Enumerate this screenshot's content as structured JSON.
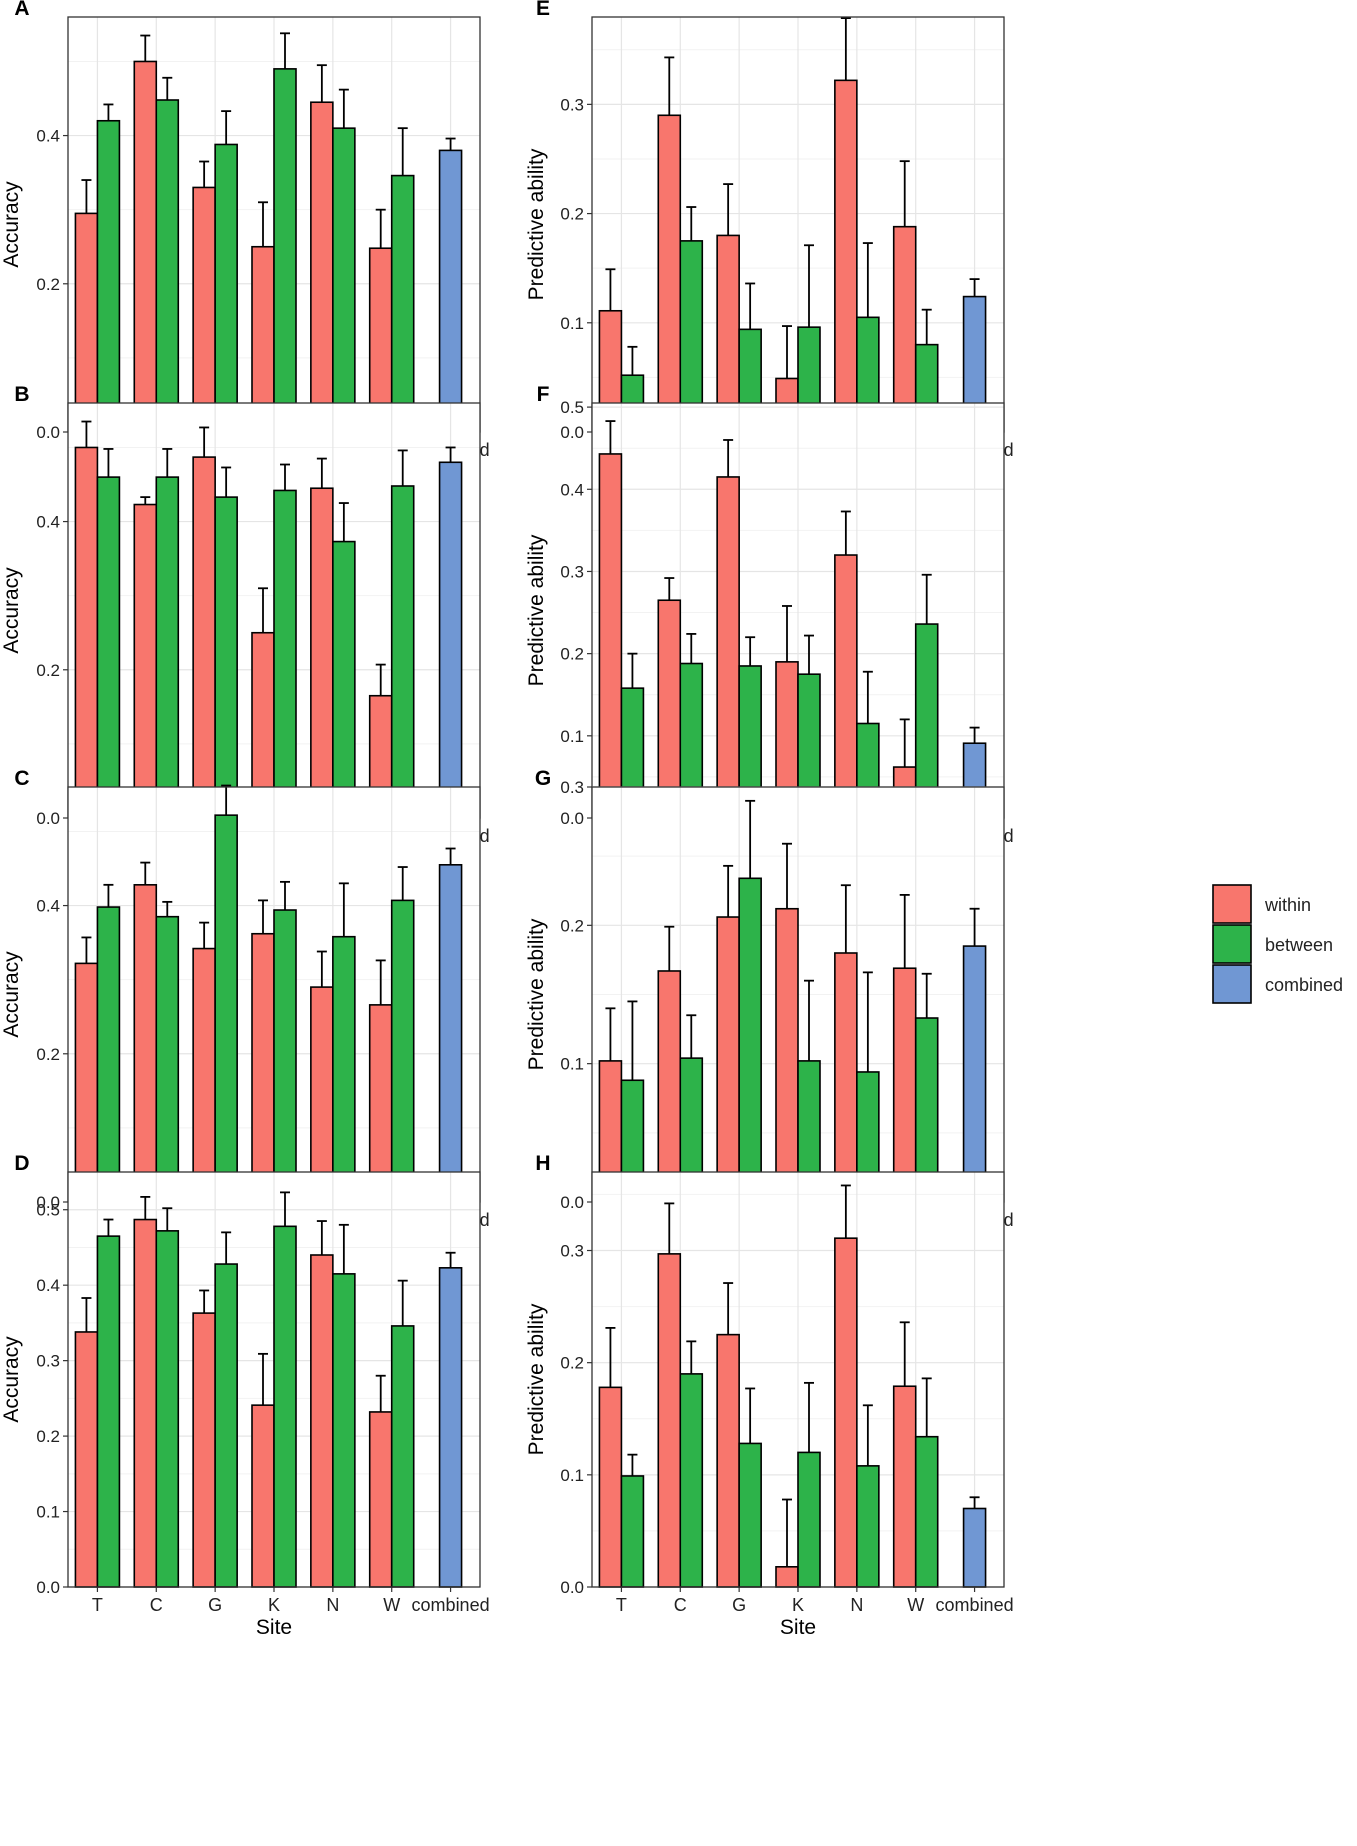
{
  "legend": {
    "position": "right",
    "items": [
      {
        "label": "within",
        "color": "#F8766D"
      },
      {
        "label": "between",
        "color": "#2DB34A"
      },
      {
        "label": "combined",
        "color": "#7097D3"
      }
    ]
  },
  "chart_data": [
    {
      "panel": "A",
      "type": "bar",
      "categories": [
        "T",
        "C",
        "G",
        "K",
        "N",
        "W",
        "combined"
      ],
      "series": [
        {
          "name": "within",
          "values": [
            0.295,
            0.5,
            0.33,
            0.25,
            0.445,
            0.248,
            null
          ],
          "errors": [
            0.045,
            0.035,
            0.035,
            0.06,
            0.05,
            0.052,
            null
          ]
        },
        {
          "name": "between",
          "values": [
            0.42,
            0.448,
            0.388,
            0.49,
            0.41,
            0.346,
            null
          ],
          "errors": [
            0.022,
            0.03,
            0.045,
            0.048,
            0.052,
            0.064,
            null
          ]
        },
        {
          "name": "combined",
          "values": [
            null,
            null,
            null,
            null,
            null,
            null,
            0.38
          ],
          "errors": [
            null,
            null,
            null,
            null,
            null,
            null,
            0.016
          ]
        }
      ],
      "ylabel": "Accuracy",
      "xlabel": "",
      "ylim": [
        0,
        0.56
      ],
      "yticks": [
        0.0,
        0.2,
        0.4
      ],
      "yticklabels": [
        "0.0",
        "0.2",
        "0.4"
      ]
    },
    {
      "panel": "B",
      "type": "bar",
      "categories": [
        "T",
        "C",
        "G",
        "K",
        "N",
        "W",
        "combined"
      ],
      "series": [
        {
          "name": "within",
          "values": [
            0.5,
            0.423,
            0.487,
            0.25,
            0.445,
            0.165,
            null
          ],
          "errors": [
            0.035,
            0.01,
            0.04,
            0.06,
            0.04,
            0.042,
            null
          ]
        },
        {
          "name": "between",
          "values": [
            0.46,
            0.46,
            0.433,
            0.442,
            0.373,
            0.448,
            null
          ],
          "errors": [
            0.038,
            0.038,
            0.04,
            0.035,
            0.052,
            0.048,
            null
          ]
        },
        {
          "name": "combined",
          "values": [
            null,
            null,
            null,
            null,
            null,
            null,
            0.48
          ],
          "errors": [
            null,
            null,
            null,
            null,
            null,
            null,
            0.02
          ]
        }
      ],
      "ylabel": "Accuracy",
      "xlabel": "",
      "ylim": [
        0,
        0.56
      ],
      "yticks": [
        0.0,
        0.2,
        0.4
      ],
      "yticklabels": [
        "0.0",
        "0.2",
        "0.4"
      ]
    },
    {
      "panel": "C",
      "type": "bar",
      "categories": [
        "T",
        "C",
        "G",
        "K",
        "N",
        "W",
        "combined"
      ],
      "series": [
        {
          "name": "within",
          "values": [
            0.322,
            0.428,
            0.342,
            0.362,
            0.29,
            0.266,
            null
          ],
          "errors": [
            0.035,
            0.03,
            0.035,
            0.045,
            0.048,
            0.06,
            null
          ]
        },
        {
          "name": "between",
          "values": [
            0.398,
            0.385,
            0.522,
            0.394,
            0.358,
            0.407,
            null
          ],
          "errors": [
            0.03,
            0.02,
            0.04,
            0.038,
            0.072,
            0.045,
            null
          ]
        },
        {
          "name": "combined",
          "values": [
            null,
            null,
            null,
            null,
            null,
            null,
            0.455
          ],
          "errors": [
            null,
            null,
            null,
            null,
            null,
            null,
            0.022
          ]
        }
      ],
      "ylabel": "Accuracy",
      "xlabel": "",
      "ylim": [
        0,
        0.56
      ],
      "yticks": [
        0.0,
        0.2,
        0.4
      ],
      "yticklabels": [
        "0.0",
        "0.2",
        "0.4"
      ]
    },
    {
      "panel": "D",
      "type": "bar",
      "categories": [
        "T",
        "C",
        "G",
        "K",
        "N",
        "W",
        "combined"
      ],
      "series": [
        {
          "name": "within",
          "values": [
            0.338,
            0.487,
            0.363,
            0.241,
            0.44,
            0.232,
            null
          ],
          "errors": [
            0.045,
            0.03,
            0.03,
            0.068,
            0.045,
            0.048,
            null
          ]
        },
        {
          "name": "between",
          "values": [
            0.465,
            0.472,
            0.428,
            0.478,
            0.415,
            0.346,
            null
          ],
          "errors": [
            0.022,
            0.03,
            0.042,
            0.045,
            0.065,
            0.06,
            null
          ]
        },
        {
          "name": "combined",
          "values": [
            null,
            null,
            null,
            null,
            null,
            null,
            0.423
          ],
          "errors": [
            null,
            null,
            null,
            null,
            null,
            null,
            0.02
          ]
        }
      ],
      "ylabel": "Accuracy",
      "xlabel": "Site",
      "ylim": [
        0,
        0.55
      ],
      "yticks": [
        0.0,
        0.1,
        0.2,
        0.3,
        0.4,
        0.5
      ],
      "yticklabels": [
        "0.0",
        "0.1",
        "0.2",
        "0.3",
        "0.4",
        "0.5"
      ]
    },
    {
      "panel": "E",
      "type": "bar",
      "categories": [
        "T",
        "C",
        "G",
        "K",
        "N",
        "W",
        "combined"
      ],
      "series": [
        {
          "name": "within",
          "values": [
            0.111,
            0.29,
            0.18,
            0.049,
            0.322,
            0.188,
            null
          ],
          "errors": [
            0.038,
            0.053,
            0.047,
            0.048,
            0.057,
            0.06,
            null
          ]
        },
        {
          "name": "between",
          "values": [
            0.052,
            0.175,
            0.094,
            0.096,
            0.105,
            0.08,
            null
          ],
          "errors": [
            0.026,
            0.031,
            0.042,
            0.075,
            0.068,
            0.032,
            null
          ]
        },
        {
          "name": "combined",
          "values": [
            null,
            null,
            null,
            null,
            null,
            null,
            0.124
          ],
          "errors": [
            null,
            null,
            null,
            null,
            null,
            null,
            0.016
          ]
        }
      ],
      "ylabel": "Predictive ability",
      "xlabel": "",
      "ylim": [
        0,
        0.38
      ],
      "yticks": [
        0.0,
        0.1,
        0.2,
        0.3
      ],
      "yticklabels": [
        "0.0",
        "0.1",
        "0.2",
        "0.3"
      ]
    },
    {
      "panel": "F",
      "type": "bar",
      "categories": [
        "T",
        "C",
        "G",
        "K",
        "N",
        "W",
        "combined"
      ],
      "series": [
        {
          "name": "within",
          "values": [
            0.443,
            0.265,
            0.415,
            0.19,
            0.32,
            0.062,
            null
          ],
          "errors": [
            0.04,
            0.027,
            0.045,
            0.068,
            0.053,
            0.058,
            null
          ]
        },
        {
          "name": "between",
          "values": [
            0.158,
            0.188,
            0.185,
            0.175,
            0.115,
            0.236,
            null
          ],
          "errors": [
            0.042,
            0.036,
            0.035,
            0.047,
            0.063,
            0.06,
            null
          ]
        },
        {
          "name": "combined",
          "values": [
            null,
            null,
            null,
            null,
            null,
            null,
            0.091
          ],
          "errors": [
            null,
            null,
            null,
            null,
            null,
            null,
            0.019
          ]
        }
      ],
      "ylabel": "Predictive ability",
      "xlabel": "",
      "ylim": [
        0,
        0.505
      ],
      "yticks": [
        0.0,
        0.1,
        0.2,
        0.3,
        0.4,
        0.5
      ],
      "yticklabels": [
        "0.0",
        "0.1",
        "0.2",
        "0.3",
        "0.4",
        "0.5"
      ]
    },
    {
      "panel": "G",
      "type": "bar",
      "categories": [
        "T",
        "C",
        "G",
        "K",
        "N",
        "W",
        "combined"
      ],
      "series": [
        {
          "name": "within",
          "values": [
            0.102,
            0.167,
            0.206,
            0.212,
            0.18,
            0.169,
            null
          ],
          "errors": [
            0.038,
            0.032,
            0.037,
            0.047,
            0.049,
            0.053,
            null
          ]
        },
        {
          "name": "between",
          "values": [
            0.088,
            0.104,
            0.234,
            0.102,
            0.094,
            0.133,
            null
          ],
          "errors": [
            0.057,
            0.031,
            0.056,
            0.058,
            0.072,
            0.032,
            null
          ]
        },
        {
          "name": "combined",
          "values": [
            null,
            null,
            null,
            null,
            null,
            null,
            0.185
          ],
          "errors": [
            null,
            null,
            null,
            null,
            null,
            null,
            0.027
          ]
        }
      ],
      "ylabel": "Predictive ability",
      "xlabel": "",
      "ylim": [
        0,
        0.3
      ],
      "yticks": [
        0.0,
        0.1,
        0.2,
        0.3
      ],
      "yticklabels": [
        "0.0",
        "0.1",
        "0.2",
        "0.3"
      ]
    },
    {
      "panel": "H",
      "type": "bar",
      "categories": [
        "T",
        "C",
        "G",
        "K",
        "N",
        "W",
        "combined"
      ],
      "series": [
        {
          "name": "within",
          "values": [
            0.178,
            0.297,
            0.225,
            0.018,
            0.311,
            0.179,
            null
          ],
          "errors": [
            0.053,
            0.045,
            0.046,
            0.06,
            0.047,
            0.057,
            null
          ]
        },
        {
          "name": "between",
          "values": [
            0.099,
            0.19,
            0.128,
            0.12,
            0.108,
            0.134,
            null
          ],
          "errors": [
            0.019,
            0.029,
            0.049,
            0.062,
            0.054,
            0.052,
            null
          ]
        },
        {
          "name": "combined",
          "values": [
            null,
            null,
            null,
            null,
            null,
            null,
            0.07
          ],
          "errors": [
            null,
            null,
            null,
            null,
            null,
            null,
            0.01
          ]
        }
      ],
      "ylabel": "Predictive ability",
      "xlabel": "Site",
      "ylim": [
        0,
        0.37
      ],
      "yticks": [
        0.0,
        0.1,
        0.2,
        0.3
      ],
      "yticklabels": [
        "0.0",
        "0.1",
        "0.2",
        "0.3"
      ]
    }
  ]
}
